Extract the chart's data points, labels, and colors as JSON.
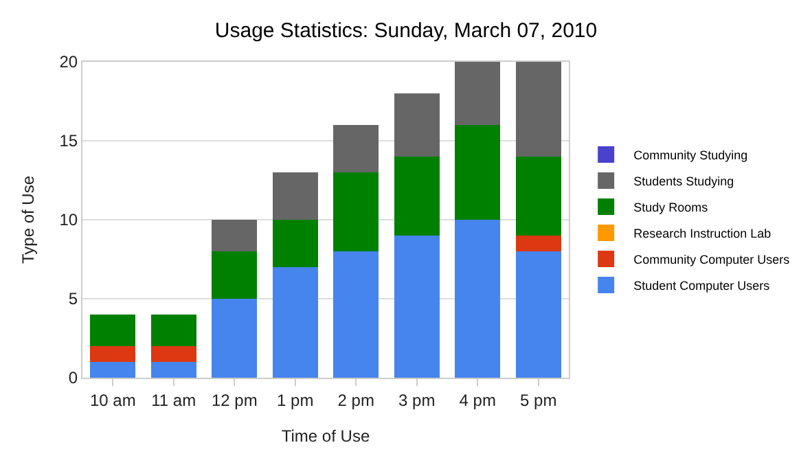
{
  "chart_data": {
    "type": "bar",
    "stacked": true,
    "title": "Usage Statistics: Sunday, March 07, 2010",
    "xlabel": "Time of Use",
    "ylabel": "Type of Use",
    "categories": [
      "10 am",
      "11 am",
      "12 pm",
      "1 pm",
      "2 pm",
      "3 pm",
      "4 pm",
      "5 pm"
    ],
    "series": [
      {
        "name": "Student Computer Users",
        "color": "#4684ee",
        "values": [
          1,
          1,
          5,
          7,
          8,
          9,
          10,
          8
        ]
      },
      {
        "name": "Community Computer Users",
        "color": "#dc3912",
        "values": [
          1,
          1,
          0,
          0,
          0,
          0,
          0,
          1
        ]
      },
      {
        "name": "Research Instruction Lab",
        "color": "#ff9900",
        "values": [
          0,
          0,
          0,
          0,
          0,
          0,
          0,
          0
        ]
      },
      {
        "name": "Study Rooms",
        "color": "#008000",
        "values": [
          2,
          2,
          3,
          3,
          5,
          5,
          6,
          5
        ]
      },
      {
        "name": "Students Studying",
        "color": "#666666",
        "values": [
          0,
          0,
          2,
          3,
          3,
          4,
          4,
          6
        ]
      },
      {
        "name": "Community Studying",
        "color": "#4942cc",
        "values": [
          0,
          0,
          0,
          0,
          0,
          0,
          0,
          0
        ]
      }
    ],
    "ylim": [
      0,
      20
    ],
    "yticks": [
      0,
      5,
      10,
      15,
      20
    ],
    "grid": "y",
    "legend": "right"
  }
}
